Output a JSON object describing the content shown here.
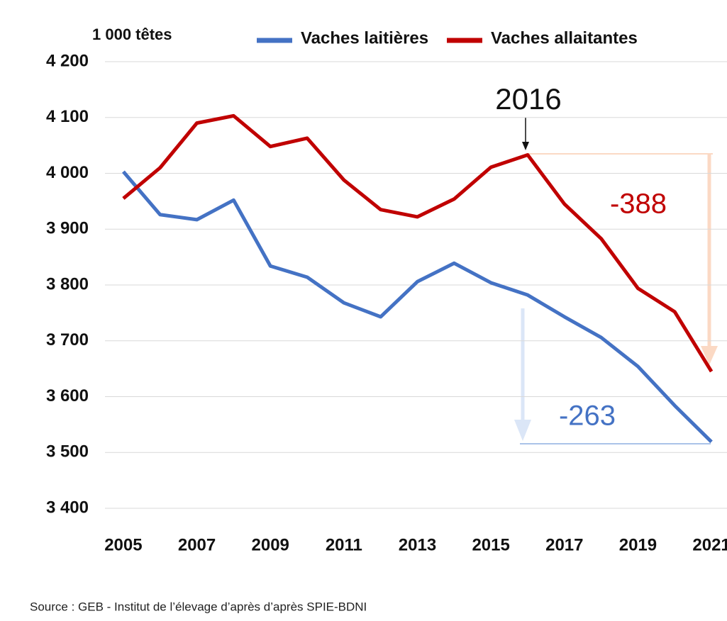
{
  "chart_data": {
    "type": "line",
    "y_unit": "1 000 têtes",
    "x": [
      2005,
      2006,
      2007,
      2008,
      2009,
      2010,
      2011,
      2012,
      2013,
      2014,
      2015,
      2016,
      2017,
      2018,
      2019,
      2020,
      2021
    ],
    "series": [
      {
        "name": "Vaches laitières",
        "color": "#4472c4",
        "values": [
          4003,
          3926,
          3917,
          3952,
          3834,
          3814,
          3768,
          3743,
          3806,
          3839,
          3804,
          3782,
          3743,
          3706,
          3654,
          3584,
          3519
        ]
      },
      {
        "name": "Vaches allaitantes",
        "color": "#c00000",
        "values": [
          3955,
          4010,
          4090,
          4103,
          4048,
          4063,
          3988,
          3935,
          3922,
          3954,
          4011,
          4033,
          3945,
          3883,
          3794,
          3752,
          3645
        ]
      }
    ],
    "xlim": [
      2004.5,
      2021.5
    ],
    "xticks": [
      2005,
      2007,
      2009,
      2011,
      2013,
      2015,
      2017,
      2019,
      2021
    ],
    "ylim": [
      3400,
      4200
    ],
    "yticks": [
      {
        "value": 3400,
        "label": "3 400"
      },
      {
        "value": 3500,
        "label": "3 500"
      },
      {
        "value": 3600,
        "label": "3 600"
      },
      {
        "value": 3700,
        "label": "3 700"
      },
      {
        "value": 3800,
        "label": "3 800"
      },
      {
        "value": 3900,
        "label": "3 900"
      },
      {
        "value": 4000,
        "label": "4 000"
      },
      {
        "value": 4100,
        "label": "4 100"
      },
      {
        "value": 4200,
        "label": "4 200"
      }
    ],
    "grid": true,
    "annotations": [
      "2016",
      "-388",
      "-263"
    ],
    "source": "Source :  GEB - Institut de l’élevage d’après d’après SPIE-BDNI"
  }
}
